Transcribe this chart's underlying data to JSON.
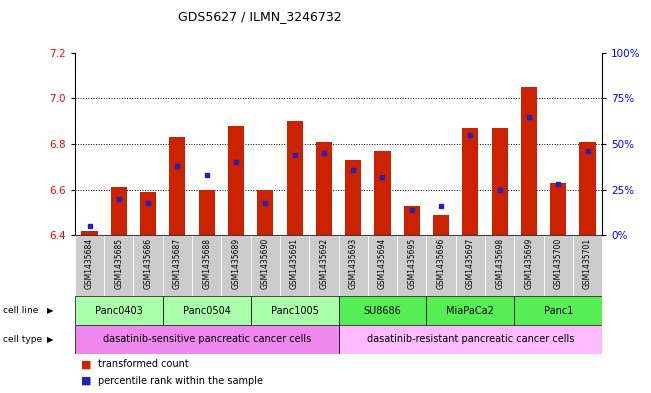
{
  "title": "GDS5627 / ILMN_3246732",
  "samples": [
    "GSM1435684",
    "GSM1435685",
    "GSM1435686",
    "GSM1435687",
    "GSM1435688",
    "GSM1435689",
    "GSM1435690",
    "GSM1435691",
    "GSM1435692",
    "GSM1435693",
    "GSM1435694",
    "GSM1435695",
    "GSM1435696",
    "GSM1435697",
    "GSM1435698",
    "GSM1435699",
    "GSM1435700",
    "GSM1435701"
  ],
  "transformed_count": [
    6.42,
    6.61,
    6.59,
    6.83,
    6.6,
    6.88,
    6.6,
    6.9,
    6.81,
    6.73,
    6.77,
    6.53,
    6.49,
    6.87,
    6.87,
    7.05,
    6.63,
    6.81
  ],
  "percentile_rank": [
    5,
    20,
    18,
    38,
    33,
    40,
    18,
    44,
    45,
    36,
    32,
    14,
    16,
    55,
    25,
    65,
    28,
    46
  ],
  "ylim_left": [
    6.4,
    7.2
  ],
  "ylim_right": [
    0,
    100
  ],
  "yticks_left": [
    6.4,
    6.6,
    6.8,
    7.0,
    7.2
  ],
  "yticks_right": [
    0,
    25,
    50,
    75,
    100
  ],
  "ytick_labels_right": [
    "0%",
    "25%",
    "50%",
    "75%",
    "100%"
  ],
  "cell_lines": [
    {
      "name": "Panc0403",
      "start": 0,
      "end": 3,
      "color": "#aaffaa"
    },
    {
      "name": "Panc0504",
      "start": 3,
      "end": 6,
      "color": "#aaffaa"
    },
    {
      "name": "Panc1005",
      "start": 6,
      "end": 9,
      "color": "#aaffaa"
    },
    {
      "name": "SU8686",
      "start": 9,
      "end": 12,
      "color": "#55ee55"
    },
    {
      "name": "MiaPaCa2",
      "start": 12,
      "end": 15,
      "color": "#55ee55"
    },
    {
      "name": "Panc1",
      "start": 15,
      "end": 18,
      "color": "#55ee55"
    }
  ],
  "cell_type_sensitive": {
    "label": "dasatinib-sensitive pancreatic cancer cells",
    "start": 0,
    "end": 9,
    "color": "#ee88ee"
  },
  "cell_type_resistant": {
    "label": "dasatinib-resistant pancreatic cancer cells",
    "start": 9,
    "end": 18,
    "color": "#ffbbff"
  },
  "bar_color": "#cc2200",
  "dot_color": "#2222bb",
  "bar_width": 0.55,
  "base_value": 6.4,
  "sample_bg_color": "#cccccc",
  "legend_bar_label": "transformed count",
  "legend_dot_label": "percentile rank within the sample"
}
